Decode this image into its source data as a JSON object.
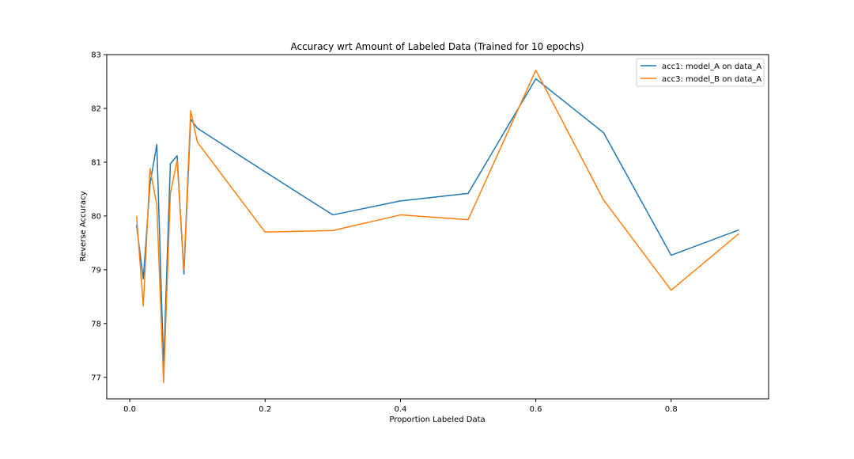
{
  "chart_data": {
    "type": "line",
    "title": "Accuracy wrt Amount of Labeled Data (Trained for 10 epochs)",
    "xlabel": "Proportion Labeled Data",
    "ylabel": "Reverse Accuracy",
    "xlim": [
      -0.034,
      0.944
    ],
    "ylim": [
      76.6,
      83.0
    ],
    "xticks": [
      0.0,
      0.2,
      0.4,
      0.6,
      0.8
    ],
    "xtick_labels": [
      "0.0",
      "0.2",
      "0.4",
      "0.6",
      "0.8"
    ],
    "yticks": [
      77,
      78,
      79,
      80,
      81,
      82,
      83
    ],
    "ytick_labels": [
      "77",
      "78",
      "79",
      "80",
      "81",
      "82",
      "83"
    ],
    "grid": false,
    "legend_position": "top-right",
    "x": [
      0.01,
      0.02,
      0.03,
      0.04,
      0.05,
      0.06,
      0.07,
      0.08,
      0.09,
      0.1,
      0.2,
      0.3,
      0.4,
      0.5,
      0.6,
      0.7,
      0.8,
      0.9
    ],
    "series": [
      {
        "name": "acc1: model_A on data_A",
        "color": "#1f77b4",
        "values": [
          79.83,
          78.83,
          80.6,
          81.33,
          77.2,
          80.97,
          81.12,
          78.92,
          81.8,
          81.63,
          80.82,
          80.02,
          80.28,
          80.42,
          82.55,
          81.55,
          79.27,
          79.74
        ]
      },
      {
        "name": "acc3: model_B on data_A",
        "color": "#ff7f0e",
        "values": [
          80.0,
          78.33,
          80.88,
          80.2,
          76.9,
          80.42,
          81.03,
          79.0,
          81.96,
          81.37,
          79.7,
          79.73,
          80.02,
          79.93,
          82.71,
          80.3,
          78.62,
          79.67
        ]
      }
    ]
  }
}
